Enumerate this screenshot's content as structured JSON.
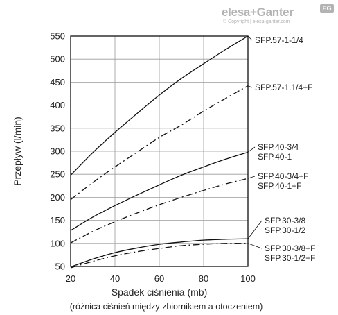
{
  "logo": {
    "brand": "elesa+Ganter",
    "badge": "EG",
    "copyright": "© Copyright | elesa-ganter.com"
  },
  "chart_data": {
    "type": "line",
    "xlabel": "Spadek ciśnienia (mb)",
    "xlabel_note": "(różnica ciśnień między zbiornikiem a otoczeniem)",
    "ylabel": "Przepływ (l/min)",
    "xlim": [
      20,
      100
    ],
    "ylim": [
      50,
      550
    ],
    "x_ticks": [
      20,
      40,
      60,
      80,
      100
    ],
    "y_ticks": [
      50,
      100,
      150,
      200,
      250,
      300,
      350,
      400,
      450,
      500,
      550
    ],
    "grid": true,
    "series": [
      {
        "style": "solid",
        "points": [
          [
            20,
            248
          ],
          [
            30,
            297
          ],
          [
            40,
            341
          ],
          [
            50,
            382
          ],
          [
            60,
            422
          ],
          [
            70,
            458
          ],
          [
            80,
            490
          ],
          [
            90,
            521
          ],
          [
            100,
            550
          ]
        ]
      },
      {
        "style": "dashdot",
        "points": [
          [
            20,
            195
          ],
          [
            30,
            232
          ],
          [
            40,
            266
          ],
          [
            50,
            298
          ],
          [
            60,
            330
          ],
          [
            70,
            357
          ],
          [
            80,
            387
          ],
          [
            90,
            415
          ],
          [
            100,
            442
          ]
        ]
      },
      {
        "style": "solid",
        "points": [
          [
            20,
            128
          ],
          [
            30,
            157
          ],
          [
            40,
            182
          ],
          [
            50,
            205
          ],
          [
            60,
            227
          ],
          [
            70,
            248
          ],
          [
            80,
            266
          ],
          [
            90,
            283
          ],
          [
            100,
            298
          ]
        ]
      },
      {
        "style": "dashdot",
        "points": [
          [
            20,
            101
          ],
          [
            30,
            126
          ],
          [
            40,
            147
          ],
          [
            50,
            166
          ],
          [
            60,
            184
          ],
          [
            70,
            200
          ],
          [
            80,
            215
          ],
          [
            90,
            229
          ],
          [
            100,
            241
          ]
        ]
      },
      {
        "style": "solid",
        "points": [
          [
            20,
            49
          ],
          [
            30,
            66
          ],
          [
            40,
            80
          ],
          [
            50,
            90
          ],
          [
            60,
            98
          ],
          [
            70,
            103
          ],
          [
            80,
            107
          ],
          [
            90,
            109
          ],
          [
            100,
            110
          ]
        ]
      },
      {
        "style": "dashdot",
        "points": [
          [
            20,
            47
          ],
          [
            30,
            61
          ],
          [
            40,
            73
          ],
          [
            50,
            82
          ],
          [
            60,
            89
          ],
          [
            70,
            95
          ],
          [
            80,
            98
          ],
          [
            90,
            100
          ],
          [
            100,
            100
          ]
        ]
      }
    ],
    "annotations": [
      {
        "lines": [
          "SFP.57-1-1/4"
        ],
        "x": 100,
        "y": 550
      },
      {
        "lines": [
          "SFP.57-1.1/4+F"
        ],
        "x": 100,
        "y": 442
      },
      {
        "lines": [
          "SFP.40-3/4",
          "SFP.40-1"
        ],
        "x": 100,
        "y": 298
      },
      {
        "lines": [
          "SFP.40-3/4+F",
          "SFP.40-1+F"
        ],
        "x": 100,
        "y": 241
      },
      {
        "lines": [
          "SFP.30-3/8",
          "SFP.30-1/2"
        ],
        "x": 100,
        "y": 110
      },
      {
        "lines": [
          "SFP.30-3/8+F",
          "SFP.30-1/2+F"
        ],
        "x": 100,
        "y": 100
      }
    ]
  }
}
